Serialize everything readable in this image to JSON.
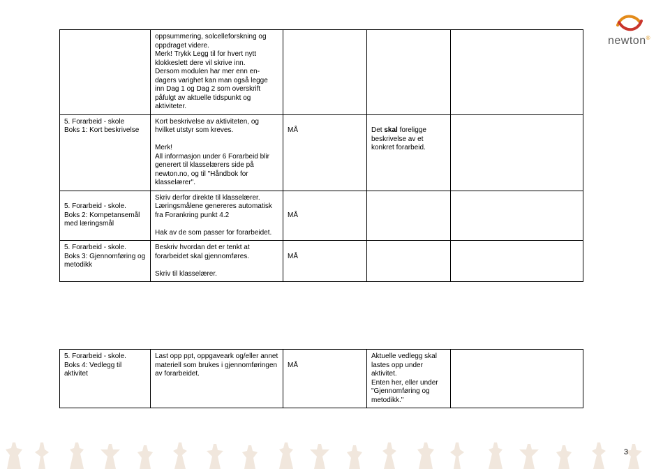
{
  "logo": {
    "text": "newton",
    "color_orange": "#e38b1a",
    "color_red": "#c9352c"
  },
  "page_number": "3",
  "table1": {
    "rows": [
      {
        "c0": "",
        "c1_html": "oppsummering, solcelleforskning og oppdraget videre.<br>Merk! Trykk Legg til for hvert nytt klokkeslett dere vil skrive inn.<br>Dersom modulen har mer enn en-dagers varighet kan man også legge inn Dag 1 og Dag 2 som overskrift påfulgt av aktuelle tidspunkt og aktiviteter.",
        "c2": "",
        "c3": "",
        "c4": ""
      },
      {
        "c0_html": "5. Forarbeid - skole<br>Boks 1: Kort beskrivelse",
        "c1_html": "Kort beskrivelse av aktiviteten, og hvilket utstyr som kreves.<br><br>Merk!<br>All informasjon under 6 Forarbeid blir generert til klasselærers side på newton.no, og til &quot;Håndbok for klasselærer&quot;.",
        "c2": "MÅ",
        "c3_html": "Det <b>skal</b> foreligge beskrivelse av et konkret forarbeid.",
        "c4": ""
      },
      {
        "c0_html": "5. Forarbeid - skole.<br>Boks 2: Kompetansemål med læringsmål",
        "c1_html": "Skriv derfor direkte til klasselærer.<br>Læringsmålene genereres automatisk fra Forankring punkt 4.2<br><br>Hak av de som passer for forarbeidet.",
        "c2": "MÅ",
        "c3": "",
        "c4": ""
      },
      {
        "c0_html": "5. Forarbeid - skole.<br>Boks 3: Gjennomføring og metodikk",
        "c1_html": "Beskriv hvordan det er tenkt at forarbeidet skal gjennomføres.<br><br>Skriv til klasselærer.",
        "c2": "MÅ",
        "c3": "",
        "c4": ""
      }
    ]
  },
  "table2": {
    "rows": [
      {
        "c0_html": "5. Forarbeid - skole.<br>Boks 4: Vedlegg til aktivitet",
        "c1_html": "Last opp ppt, oppgaveark og/eller annet materiell som brukes i gjennomføringen av forarbeidet.",
        "c2": "MÅ",
        "c3_html": "Aktuelle vedlegg skal lastes opp under aktivitet.<br>Enten her, eller under &quot;Gjennomføring og metodikk.&quot;",
        "c4": ""
      }
    ]
  },
  "silhouette_color": "#f1e7dd"
}
